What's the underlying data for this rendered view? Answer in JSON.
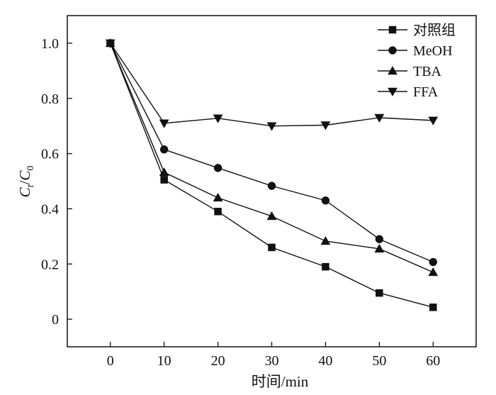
{
  "chart_data": {
    "type": "line",
    "xlabel": "时间/min",
    "ylabel_main": "C",
    "ylabel_sub1": "t",
    "ylabel_sep": "/",
    "ylabel_main2": "C",
    "ylabel_sub2": "0",
    "x": [
      0,
      10,
      20,
      30,
      40,
      50,
      60
    ],
    "xlim": [
      -8,
      68
    ],
    "ylim": [
      -0.1,
      1.1
    ],
    "xticks": [
      0,
      10,
      20,
      30,
      40,
      50,
      60
    ],
    "xtick_labels": [
      "0",
      "10",
      "20",
      "30",
      "40",
      "50",
      "60"
    ],
    "yticks": [
      0,
      0.2,
      0.4,
      0.6,
      0.8,
      1.0
    ],
    "ytick_labels": [
      "0",
      "0.2",
      "0.4",
      "0.6",
      "0.8",
      "1.0"
    ],
    "grid": false,
    "legend_position": "top-right",
    "series": [
      {
        "name": "对照组",
        "marker": "square",
        "values": [
          1.0,
          0.505,
          0.39,
          0.26,
          0.19,
          0.095,
          0.043
        ]
      },
      {
        "name": "MeOH",
        "marker": "circle",
        "values": [
          1.0,
          0.615,
          0.548,
          0.483,
          0.43,
          0.29,
          0.207
        ]
      },
      {
        "name": "TBA",
        "marker": "triangle-up",
        "values": [
          1.0,
          0.532,
          0.44,
          0.373,
          0.283,
          0.255,
          0.17
        ]
      },
      {
        "name": "FFA",
        "marker": "triangle-down",
        "values": [
          1.0,
          0.71,
          0.728,
          0.7,
          0.703,
          0.73,
          0.72
        ]
      }
    ]
  }
}
